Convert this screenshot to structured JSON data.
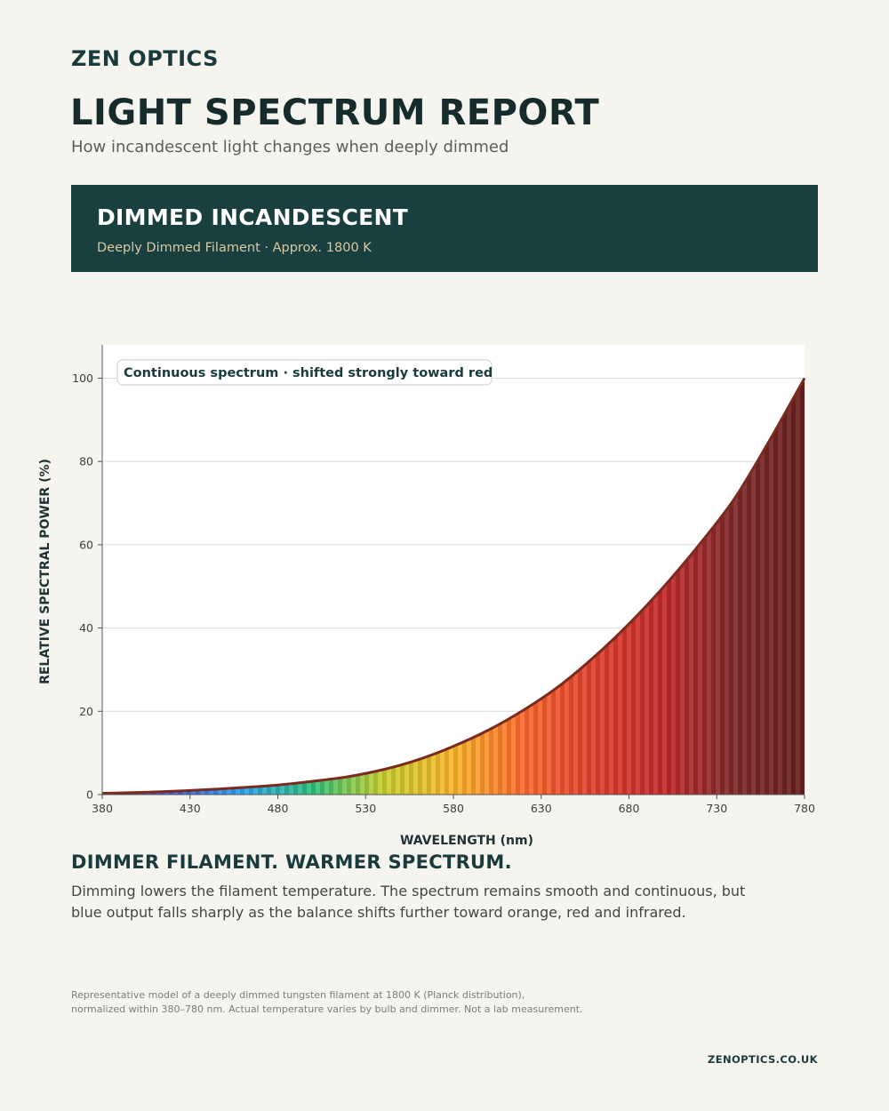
{
  "brand": "ZEN OPTICS",
  "title": "LIGHT SPECTRUM REPORT",
  "subtitle": "How incandescent light changes when deeply dimmed",
  "banner": {
    "title": "DIMMED INCANDESCENT",
    "subtitle": "Deeply Dimmed Filament · Approx. 1800 K"
  },
  "chart_data": {
    "type": "area",
    "title": "",
    "xlabel": "WAVELENGTH (nm)",
    "ylabel": "RELATIVE SPECTRAL POWER (%)",
    "xlim": [
      380,
      780
    ],
    "ylim": [
      0,
      108
    ],
    "xticks": [
      380,
      430,
      480,
      530,
      580,
      630,
      680,
      730,
      780
    ],
    "yticks": [
      0,
      20,
      40,
      60,
      80,
      100
    ],
    "grid": true,
    "annotation": "Continuous spectrum · shifted strongly toward red",
    "series": [
      {
        "x": [
          380,
          400,
          420,
          440,
          460,
          480,
          500,
          520,
          540,
          560,
          580,
          600,
          620,
          640,
          660,
          680,
          700,
          720,
          740,
          760,
          780
        ],
        "values": [
          0.3,
          0.5,
          0.8,
          1.2,
          1.7,
          2.3,
          3.2,
          4.3,
          6.0,
          8.4,
          11.6,
          15.5,
          20.3,
          26.0,
          33.0,
          41.0,
          50.0,
          60.0,
          71.0,
          85.0,
          100.0
        ]
      }
    ],
    "colors": {
      "line": "#7a2a1e",
      "gradient": [
        "#6a3fb8",
        "#3d5ee0",
        "#2aa7ef",
        "#2fc27a",
        "#c9d12e",
        "#fdb72a",
        "#ff6a2e",
        "#e2402e",
        "#c52a2a",
        "#7f2a2a",
        "#6a1f1f"
      ]
    }
  },
  "headline": "DIMMER FILAMENT. WARMER SPECTRUM.",
  "body": "Dimming lowers the filament temperature. The spectrum remains smooth and continuous, but blue output falls sharply as the balance shifts further toward orange, red and infrared.",
  "footnote": {
    "line1": "Representative model of a deeply dimmed tungsten filament at 1800 K (Planck distribution),",
    "line2": "normalized within 380–780 nm. Actual temperature varies by bulb and dimmer. Not a lab measurement."
  },
  "site": "ZENOPTICS.CO.UK"
}
